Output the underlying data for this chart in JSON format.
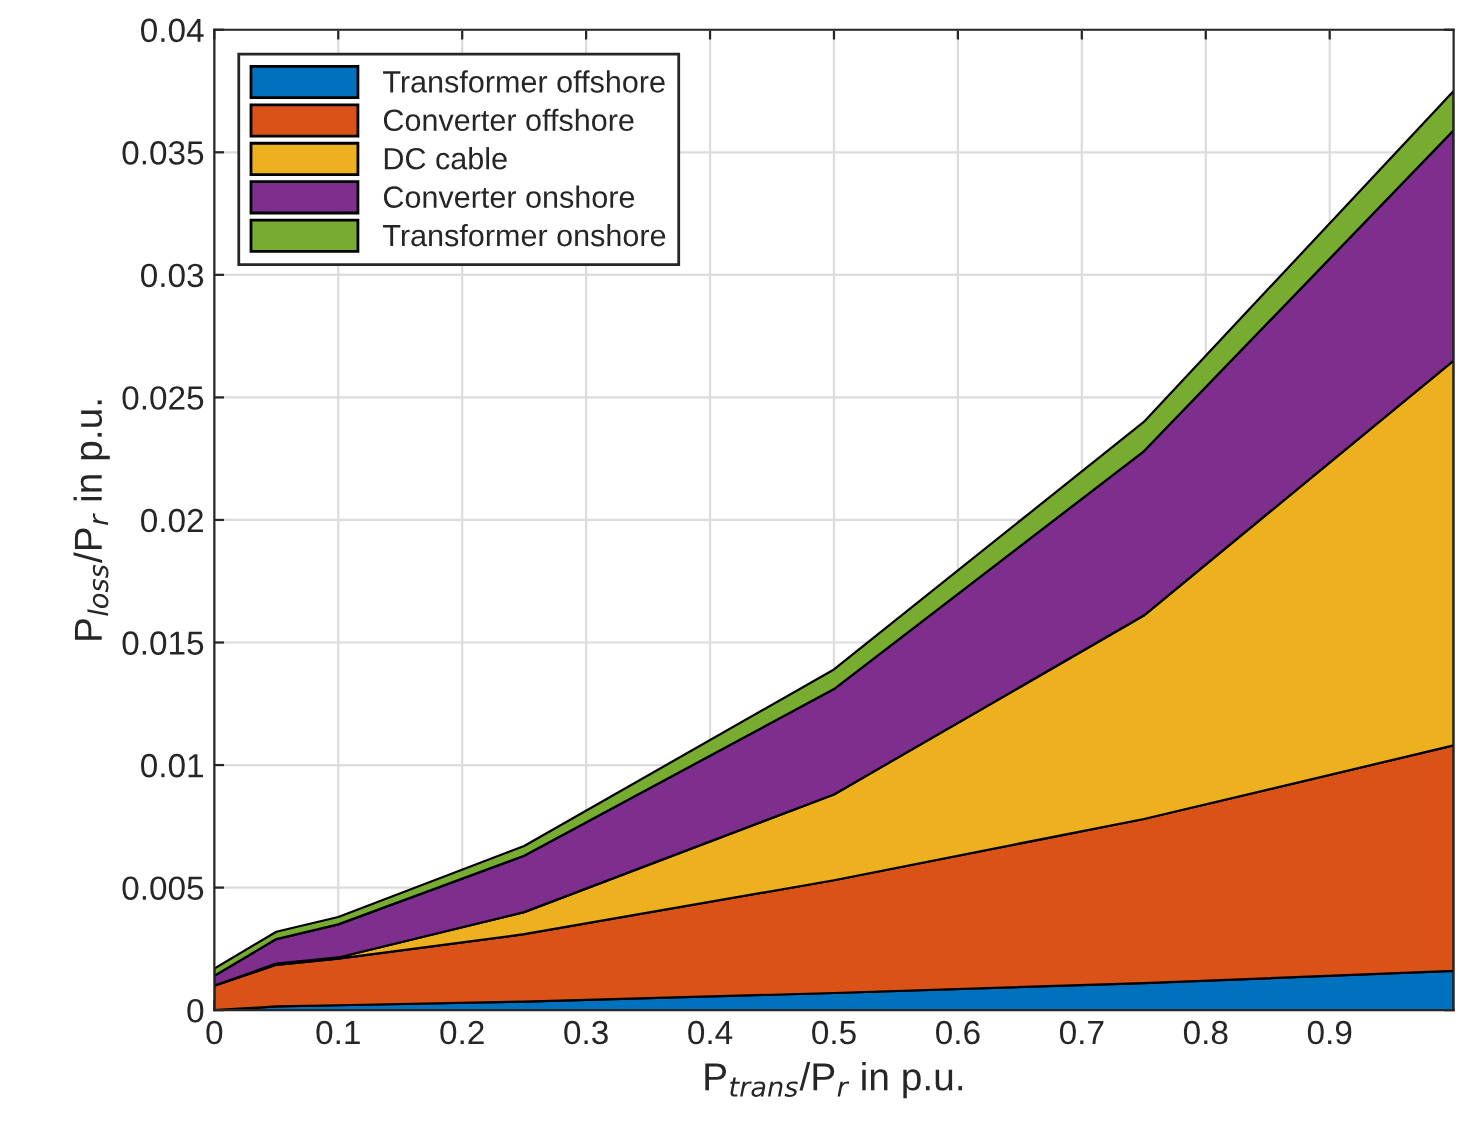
{
  "chart_data": {
    "type": "area",
    "stacked": true,
    "xlabel": "P$_{trans}$/P$_{r}$ in p.u.",
    "ylabel": "P$_{loss}$/P$_{r}$ in p.u.",
    "x": [
      0,
      0.05,
      0.1,
      0.25,
      0.5,
      0.75,
      1.0
    ],
    "series": [
      {
        "name": "Transformer offshore",
        "color": "#0072bd",
        "values": [
          0,
          0.00015,
          0.0002,
          0.00035,
          0.0007,
          0.0011,
          0.0016
        ]
      },
      {
        "name": "Converter offshore",
        "color": "#d95319",
        "values": [
          0.001,
          0.0017,
          0.0019,
          0.00275,
          0.0046,
          0.0067,
          0.0092
        ]
      },
      {
        "name": "DC cable",
        "color": "#edb120",
        "values": [
          0,
          5e-05,
          5e-05,
          0.0009,
          0.0035,
          0.0083,
          0.0157
        ]
      },
      {
        "name": "Converter onshore",
        "color": "#7e2f8e",
        "values": [
          0.0004,
          0.001,
          0.00135,
          0.0023,
          0.0043,
          0.0067,
          0.0094
        ]
      },
      {
        "name": "Transformer onshore",
        "color": "#77ac30",
        "values": [
          0.0003,
          0.0003,
          0.0003,
          0.0004,
          0.0008,
          0.0012,
          0.0016
        ]
      }
    ],
    "xlim": [
      0,
      1
    ],
    "ylim": [
      0,
      0.04
    ],
    "xticks": [
      0,
      0.1,
      0.2,
      0.3,
      0.4,
      0.5,
      0.6,
      0.7,
      0.8,
      0.9
    ],
    "yticks": [
      0,
      0.005,
      0.01,
      0.015,
      0.02,
      0.025,
      0.03,
      0.035,
      0.04
    ],
    "grid": true,
    "legend": "top left"
  }
}
